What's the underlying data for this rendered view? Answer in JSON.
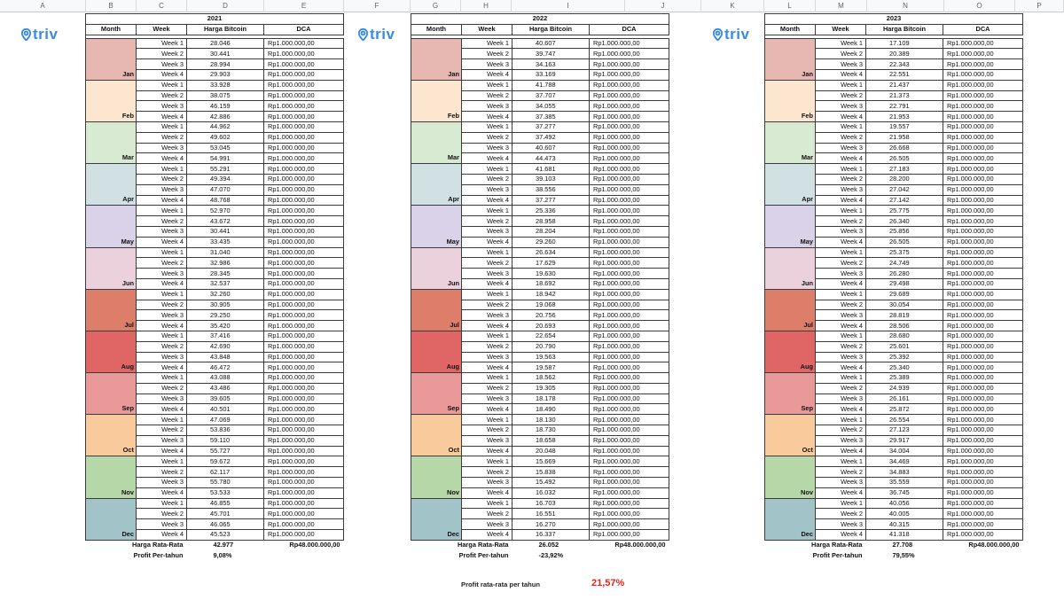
{
  "logo_text": "triv",
  "column_letters": [
    "A",
    "B",
    "C",
    "D",
    "E",
    "F",
    "G",
    "H",
    "I",
    "J",
    "K",
    "L",
    "M",
    "N",
    "O",
    "P"
  ],
  "headers": {
    "month": "Month",
    "week": "Week",
    "price": "Harga Bitcoin",
    "dca": "DCA"
  },
  "dca_amount": "Rp1.000.000,00",
  "summary_labels": {
    "avg": "Harga Rata-Rata",
    "profit": "Profit Per-tahun"
  },
  "month_colors": {
    "Jan": "#e6b8b1",
    "Feb": "#fde6cf",
    "Mar": "#d9ead3",
    "Apr": "#d0e0e3",
    "May": "#d9d2e9",
    "Jun": "#ead1dc",
    "Jul": "#dd7e6b",
    "Aug": "#e06666",
    "Sep": "#ea9999",
    "Oct": "#f9cb9c",
    "Nov": "#b6d7a8",
    "Dec": "#a2c4c9"
  },
  "tables": [
    {
      "year": "2021",
      "avg_price": "42.977",
      "total_dca": "Rp48.000.000,00",
      "profit": "9,08%",
      "months": [
        {
          "name": "Jan",
          "weeks": [
            {
              "w": "Week 1",
              "p": "28.046"
            },
            {
              "w": "Week 2",
              "p": "30.441"
            },
            {
              "w": "Week 3",
              "p": "28.994"
            },
            {
              "w": "Week 4",
              "p": "29.903"
            }
          ]
        },
        {
          "name": "Feb",
          "weeks": [
            {
              "w": "Week 1",
              "p": "33.928"
            },
            {
              "w": "Week 2",
              "p": "38.075"
            },
            {
              "w": "Week 3",
              "p": "46.159"
            },
            {
              "w": "Week 4",
              "p": "42.886"
            }
          ]
        },
        {
          "name": "Mar",
          "weeks": [
            {
              "w": "Week 1",
              "p": "44.962"
            },
            {
              "w": "Week 2",
              "p": "49.602"
            },
            {
              "w": "Week 3",
              "p": "53.045"
            },
            {
              "w": "Week 4",
              "p": "54.991"
            }
          ]
        },
        {
          "name": "Apr",
          "weeks": [
            {
              "w": "Week 1",
              "p": "55.291"
            },
            {
              "w": "Week 2",
              "p": "49.394"
            },
            {
              "w": "Week 3",
              "p": "47.070"
            },
            {
              "w": "Week 4",
              "p": "48.768"
            }
          ]
        },
        {
          "name": "May",
          "weeks": [
            {
              "w": "Week 1",
              "p": "52.970"
            },
            {
              "w": "Week 2",
              "p": "43.672"
            },
            {
              "w": "Week 3",
              "p": "30.441"
            },
            {
              "w": "Week 4",
              "p": "33.435"
            }
          ]
        },
        {
          "name": "Jun",
          "weeks": [
            {
              "w": "Week 1",
              "p": "31.040"
            },
            {
              "w": "Week 2",
              "p": "32.986"
            },
            {
              "w": "Week 3",
              "p": "28.345"
            },
            {
              "w": "Week 4",
              "p": "32.537"
            }
          ]
        },
        {
          "name": "Jul",
          "weeks": [
            {
              "w": "Week 1",
              "p": "32.260"
            },
            {
              "w": "Week 2",
              "p": "30.905"
            },
            {
              "w": "Week 3",
              "p": "29.250"
            },
            {
              "w": "Week 4",
              "p": "35.420"
            }
          ]
        },
        {
          "name": "Aug",
          "weeks": [
            {
              "w": "Week 1",
              "p": "37.416"
            },
            {
              "w": "Week 2",
              "p": "42.690"
            },
            {
              "w": "Week 3",
              "p": "43.848"
            },
            {
              "w": "Week 4",
              "p": "46.472"
            }
          ]
        },
        {
          "name": "Sep",
          "weeks": [
            {
              "w": "Week 1",
              "p": "43.088"
            },
            {
              "w": "Week 2",
              "p": "43.486"
            },
            {
              "w": "Week 3",
              "p": "39.605"
            },
            {
              "w": "Week 4",
              "p": "40.501"
            }
          ]
        },
        {
          "name": "Oct",
          "weeks": [
            {
              "w": "Week 1",
              "p": "47.069"
            },
            {
              "w": "Week 2",
              "p": "53.836"
            },
            {
              "w": "Week 3",
              "p": "59.110"
            },
            {
              "w": "Week 4",
              "p": "55.727"
            }
          ]
        },
        {
          "name": "Nov",
          "weeks": [
            {
              "w": "Week 1",
              "p": "59.672"
            },
            {
              "w": "Week 2",
              "p": "62.117"
            },
            {
              "w": "Week 3",
              "p": "55.780"
            },
            {
              "w": "Week 4",
              "p": "53.533"
            }
          ]
        },
        {
          "name": "Dec",
          "weeks": [
            {
              "w": "Week 1",
              "p": "46.855"
            },
            {
              "w": "Week 2",
              "p": "45.701"
            },
            {
              "w": "Week 3",
              "p": "46.065"
            },
            {
              "w": "Week 4",
              "p": "45.523"
            }
          ]
        }
      ]
    },
    {
      "year": "2022",
      "avg_price": "26.052",
      "total_dca": "Rp48.000.000,00",
      "profit": "-23,92%",
      "months": [
        {
          "name": "Jan",
          "weeks": [
            {
              "w": "Week 1",
              "p": "40.607"
            },
            {
              "w": "Week 2",
              "p": "39.747"
            },
            {
              "w": "Week 3",
              "p": "34.163"
            },
            {
              "w": "Week 4",
              "p": "33.169"
            }
          ]
        },
        {
          "name": "Feb",
          "weeks": [
            {
              "w": "Week 1",
              "p": "41.788"
            },
            {
              "w": "Week 2",
              "p": "37.707"
            },
            {
              "w": "Week 3",
              "p": "34.055"
            },
            {
              "w": "Week 4",
              "p": "37.385"
            }
          ]
        },
        {
          "name": "Mar",
          "weeks": [
            {
              "w": "Week 1",
              "p": "37.277"
            },
            {
              "w": "Week 2",
              "p": "37.492"
            },
            {
              "w": "Week 3",
              "p": "40.607"
            },
            {
              "w": "Week 4",
              "p": "44.473"
            }
          ]
        },
        {
          "name": "Apr",
          "weeks": [
            {
              "w": "Week 1",
              "p": "41.681"
            },
            {
              "w": "Week 2",
              "p": "39.103"
            },
            {
              "w": "Week 3",
              "p": "38.556"
            },
            {
              "w": "Week 4",
              "p": "37.277"
            }
          ]
        },
        {
          "name": "May",
          "weeks": [
            {
              "w": "Week 1",
              "p": "25.336"
            },
            {
              "w": "Week 2",
              "p": "28.958"
            },
            {
              "w": "Week 3",
              "p": "28.204"
            },
            {
              "w": "Week 4",
              "p": "29.260"
            }
          ]
        },
        {
          "name": "Jun",
          "weeks": [
            {
              "w": "Week 1",
              "p": "26.634"
            },
            {
              "w": "Week 2",
              "p": "17.629"
            },
            {
              "w": "Week 3",
              "p": "19.630"
            },
            {
              "w": "Week 4",
              "p": "18.692"
            }
          ]
        },
        {
          "name": "Jul",
          "weeks": [
            {
              "w": "Week 1",
              "p": "18.942"
            },
            {
              "w": "Week 2",
              "p": "19.068"
            },
            {
              "w": "Week 3",
              "p": "20.756"
            },
            {
              "w": "Week 4",
              "p": "20.693"
            }
          ]
        },
        {
          "name": "Aug",
          "weeks": [
            {
              "w": "Week 1",
              "p": "22.654"
            },
            {
              "w": "Week 2",
              "p": "20.790"
            },
            {
              "w": "Week 3",
              "p": "19.563"
            },
            {
              "w": "Week 4",
              "p": "19.587"
            }
          ]
        },
        {
          "name": "Sep",
          "weeks": [
            {
              "w": "Week 1",
              "p": "18.562"
            },
            {
              "w": "Week 2",
              "p": "19.305"
            },
            {
              "w": "Week 3",
              "p": "18.178"
            },
            {
              "w": "Week 4",
              "p": "18.490"
            }
          ]
        },
        {
          "name": "Oct",
          "weeks": [
            {
              "w": "Week 1",
              "p": "18.130"
            },
            {
              "w": "Week 2",
              "p": "18.730"
            },
            {
              "w": "Week 3",
              "p": "18.658"
            },
            {
              "w": "Week 4",
              "p": "20.048"
            }
          ]
        },
        {
          "name": "Nov",
          "weeks": [
            {
              "w": "Week 1",
              "p": "15.669"
            },
            {
              "w": "Week 2",
              "p": "15.838"
            },
            {
              "w": "Week 3",
              "p": "15.492"
            },
            {
              "w": "Week 4",
              "p": "16.032"
            }
          ]
        },
        {
          "name": "Dec",
          "weeks": [
            {
              "w": "Week 1",
              "p": "16.703"
            },
            {
              "w": "Week 2",
              "p": "16.551"
            },
            {
              "w": "Week 3",
              "p": "16.270"
            },
            {
              "w": "Week 4",
              "p": "16.337"
            }
          ]
        }
      ]
    },
    {
      "year": "2023",
      "avg_price": "27.708",
      "total_dca": "Rp48.000.000,00",
      "profit": "79,55%",
      "months": [
        {
          "name": "Jan",
          "weeks": [
            {
              "w": "Week 1",
              "p": "17.109"
            },
            {
              "w": "Week 2",
              "p": "20.389"
            },
            {
              "w": "Week 3",
              "p": "22.343"
            },
            {
              "w": "Week 4",
              "p": "22.551"
            }
          ]
        },
        {
          "name": "Feb",
          "weeks": [
            {
              "w": "Week 1",
              "p": "21.437"
            },
            {
              "w": "Week 2",
              "p": "21.373"
            },
            {
              "w": "Week 3",
              "p": "22.791"
            },
            {
              "w": "Week 4",
              "p": "21.953"
            }
          ]
        },
        {
          "name": "Mar",
          "weeks": [
            {
              "w": "Week 1",
              "p": "19.557"
            },
            {
              "w": "Week 2",
              "p": "21.958"
            },
            {
              "w": "Week 3",
              "p": "26.668"
            },
            {
              "w": "Week 4",
              "p": "26.505"
            }
          ]
        },
        {
          "name": "Apr",
          "weeks": [
            {
              "w": "Week 1",
              "p": "27.183"
            },
            {
              "w": "Week 2",
              "p": "28.200"
            },
            {
              "w": "Week 3",
              "p": "27.042"
            },
            {
              "w": "Week 4",
              "p": "27.142"
            }
          ]
        },
        {
          "name": "May",
          "weeks": [
            {
              "w": "Week 1",
              "p": "25.775"
            },
            {
              "w": "Week 2",
              "p": "26.340"
            },
            {
              "w": "Week 3",
              "p": "25.856"
            },
            {
              "w": "Week 4",
              "p": "26.505"
            }
          ]
        },
        {
          "name": "Jun",
          "weeks": [
            {
              "w": "Week 1",
              "p": "25.375"
            },
            {
              "w": "Week 2",
              "p": "24.749"
            },
            {
              "w": "Week 3",
              "p": "26.280"
            },
            {
              "w": "Week 4",
              "p": "29.498"
            }
          ]
        },
        {
          "name": "Jul",
          "weeks": [
            {
              "w": "Week 1",
              "p": "29.689"
            },
            {
              "w": "Week 2",
              "p": "30.054"
            },
            {
              "w": "Week 3",
              "p": "28.819"
            },
            {
              "w": "Week 4",
              "p": "28.506"
            }
          ]
        },
        {
          "name": "Aug",
          "weeks": [
            {
              "w": "Week 1",
              "p": "28.680"
            },
            {
              "w": "Week 2",
              "p": "25.601"
            },
            {
              "w": "Week 3",
              "p": "25.392"
            },
            {
              "w": "Week 4",
              "p": "25.340"
            }
          ]
        },
        {
          "name": "Sep",
          "weeks": [
            {
              "w": "Week 1",
              "p": "25.389"
            },
            {
              "w": "Week 2",
              "p": "24.939"
            },
            {
              "w": "Week 3",
              "p": "26.161"
            },
            {
              "w": "Week 4",
              "p": "25.872"
            }
          ]
        },
        {
          "name": "Oct",
          "weeks": [
            {
              "w": "Week 1",
              "p": "26.554"
            },
            {
              "w": "Week 2",
              "p": "27.123"
            },
            {
              "w": "Week 3",
              "p": "29.917"
            },
            {
              "w": "Week 4",
              "p": "34.004"
            }
          ]
        },
        {
          "name": "Nov",
          "weeks": [
            {
              "w": "Week 1",
              "p": "34.469"
            },
            {
              "w": "Week 2",
              "p": "34.883"
            },
            {
              "w": "Week 3",
              "p": "35.559"
            },
            {
              "w": "Week 4",
              "p": "36.745"
            }
          ]
        },
        {
          "name": "Dec",
          "weeks": [
            {
              "w": "Week 1",
              "p": "40.056"
            },
            {
              "w": "Week 2",
              "p": "40.005"
            },
            {
              "w": "Week 3",
              "p": "40.315"
            },
            {
              "w": "Week 4",
              "p": "41.318"
            }
          ]
        }
      ]
    }
  ],
  "overall": {
    "label": "Profit rata-rata per tahun",
    "value": "21,57%",
    "value_color": "#e0261d"
  }
}
